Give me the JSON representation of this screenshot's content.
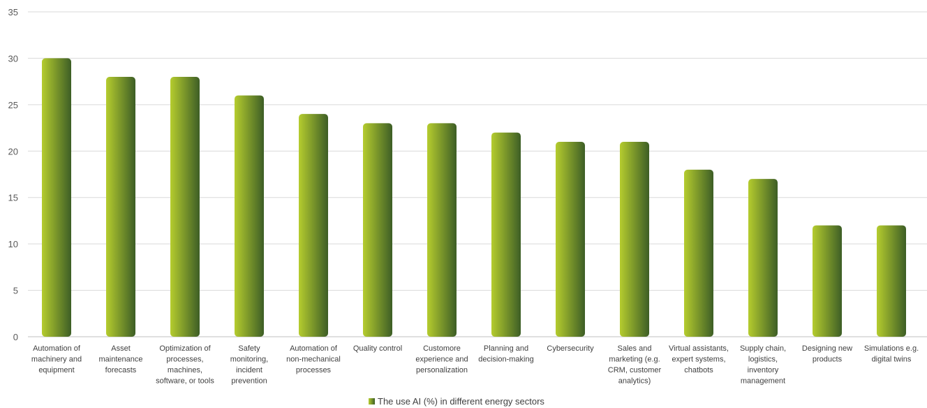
{
  "chart_data": {
    "type": "bar",
    "categories": [
      [
        "Automation of",
        "machinery and",
        "equipment"
      ],
      [
        "Asset",
        "maintenance",
        "forecasts"
      ],
      [
        "Optimization of",
        "processes,",
        "machines,",
        "software, or tools"
      ],
      [
        "Safety",
        "monitoring,",
        "incident",
        "prevention"
      ],
      [
        "Automation of",
        "non-mechanical",
        "processes"
      ],
      [
        "Quality control"
      ],
      [
        "Customore",
        "experience and",
        "personalization"
      ],
      [
        "Planning and",
        "decision-making"
      ],
      [
        "Cybersecurity"
      ],
      [
        "Sales and",
        "marketing (e.g.",
        "CRM, customer",
        "analytics)"
      ],
      [
        "Virtual assistants,",
        "expert systems,",
        "chatbots"
      ],
      [
        "Supply chain,",
        "logistics,",
        "inventory",
        "management"
      ],
      [
        "Designing new",
        "products"
      ],
      [
        "Simulations e.g.",
        "digital twins"
      ]
    ],
    "series": [
      {
        "name": "The use AI (%) in different energy sectors",
        "values": [
          30,
          28,
          28,
          26,
          24,
          23,
          23,
          22,
          21,
          21,
          18,
          17,
          12,
          12
        ]
      }
    ],
    "ylim": [
      0,
      35
    ],
    "yticks": [
      "0",
      "5",
      "10",
      "15",
      "20",
      "25",
      "30",
      "35"
    ],
    "grid": true,
    "legend_position": "bottom",
    "colors": {
      "bar_light": "#b5cc2e",
      "bar_dark": "#3d5e26",
      "gridline": "#d9d9d9",
      "axis": "#bfbfbf"
    }
  }
}
